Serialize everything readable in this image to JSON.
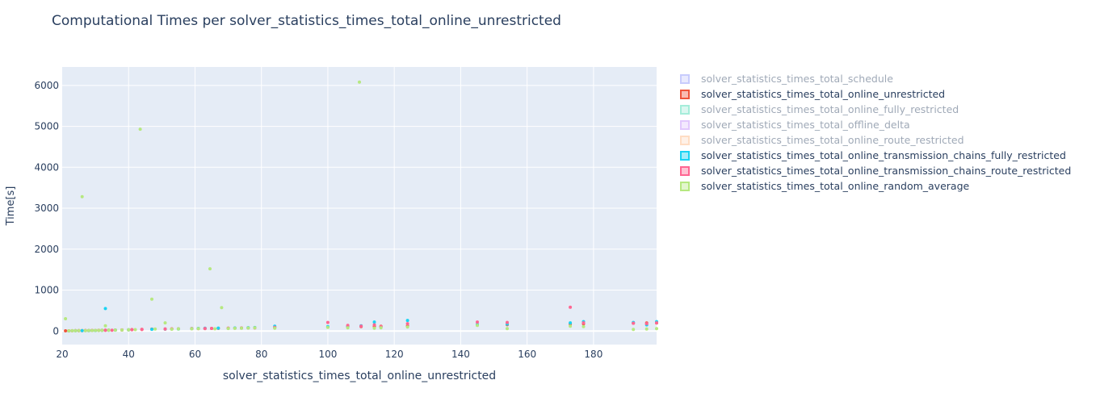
{
  "chart_data": {
    "type": "scatter",
    "title": "Computational Times per solver_statistics_times_total_online_unrestricted",
    "xlabel": "solver_statistics_times_total_online_unrestricted",
    "ylabel": "Time[s]",
    "xlim": [
      20,
      199
    ],
    "ylim": [
      -330,
      6450
    ],
    "xticks": [
      20,
      40,
      60,
      80,
      100,
      120,
      140,
      160,
      180
    ],
    "yticks": [
      0,
      1000,
      2000,
      3000,
      4000,
      5000,
      6000
    ],
    "grid": true,
    "legend_position": "right",
    "series": [
      {
        "name": "solver_statistics_times_total_schedule",
        "color": "#636efa",
        "visible": false,
        "points": []
      },
      {
        "name": "solver_statistics_times_total_online_unrestricted",
        "color": "#ef553b",
        "visible": true,
        "points": [
          [
            21,
            5
          ],
          [
            22,
            6
          ],
          [
            23,
            8
          ],
          [
            24,
            9
          ],
          [
            25,
            10
          ],
          [
            26,
            11
          ],
          [
            27,
            12
          ],
          [
            28,
            13
          ],
          [
            29,
            14
          ],
          [
            30,
            15
          ],
          [
            31,
            16
          ],
          [
            32,
            18
          ],
          [
            33,
            20
          ],
          [
            34,
            22
          ],
          [
            36,
            24
          ],
          [
            38,
            26
          ],
          [
            40,
            30
          ],
          [
            41,
            35
          ],
          [
            44,
            40
          ],
          [
            47,
            47
          ],
          [
            51,
            51
          ],
          [
            53,
            53
          ],
          [
            55,
            55
          ],
          [
            59,
            59
          ],
          [
            61,
            61
          ],
          [
            63,
            63
          ],
          [
            65,
            65
          ],
          [
            67,
            67
          ],
          [
            70,
            70
          ],
          [
            72,
            72
          ],
          [
            74,
            74
          ],
          [
            76,
            76
          ],
          [
            78,
            78
          ],
          [
            84,
            84
          ],
          [
            100,
            100
          ],
          [
            106,
            106
          ],
          [
            110,
            110
          ],
          [
            114,
            114
          ],
          [
            116,
            116
          ],
          [
            124,
            124
          ],
          [
            145,
            145
          ],
          [
            154,
            154
          ],
          [
            173,
            173
          ],
          [
            177,
            177
          ],
          [
            192,
            192
          ],
          [
            196,
            196
          ],
          [
            199,
            199
          ]
        ]
      },
      {
        "name": "solver_statistics_times_total_online_fully_restricted",
        "color": "#00cc96",
        "visible": false,
        "points": []
      },
      {
        "name": "solver_statistics_times_total_offline_delta",
        "color": "#ab63fa",
        "visible": false,
        "points": []
      },
      {
        "name": "solver_statistics_times_total_online_route_restricted",
        "color": "#ffa15a",
        "visible": false,
        "points": []
      },
      {
        "name": "solver_statistics_times_total_online_transmission_chains_fully_restricted",
        "color": "#19d3f3",
        "visible": true,
        "points": [
          [
            22,
            4
          ],
          [
            24,
            7
          ],
          [
            26,
            9
          ],
          [
            28,
            11
          ],
          [
            30,
            13
          ],
          [
            32,
            16
          ],
          [
            33,
            550
          ],
          [
            34,
            20
          ],
          [
            36,
            22
          ],
          [
            40,
            28
          ],
          [
            47,
            42
          ],
          [
            51,
            46
          ],
          [
            55,
            50
          ],
          [
            59,
            60
          ],
          [
            61,
            65
          ],
          [
            63,
            70
          ],
          [
            67,
            72
          ],
          [
            72,
            75
          ],
          [
            76,
            82
          ],
          [
            78,
            85
          ],
          [
            84,
            120
          ],
          [
            100,
            110
          ],
          [
            106,
            120
          ],
          [
            110,
            130
          ],
          [
            114,
            220
          ],
          [
            116,
            100
          ],
          [
            124,
            260
          ],
          [
            145,
            160
          ],
          [
            154,
            170
          ],
          [
            173,
            200
          ],
          [
            177,
            230
          ],
          [
            192,
            210
          ],
          [
            196,
            150
          ],
          [
            199,
            230
          ]
        ]
      },
      {
        "name": "solver_statistics_times_total_online_transmission_chains_route_restricted",
        "color": "#ff6692",
        "visible": true,
        "points": [
          [
            22,
            6
          ],
          [
            25,
            10
          ],
          [
            27,
            12
          ],
          [
            29,
            14
          ],
          [
            31,
            17
          ],
          [
            33,
            19
          ],
          [
            35,
            21
          ],
          [
            38,
            25
          ],
          [
            41,
            32
          ],
          [
            44,
            38
          ],
          [
            51,
            50
          ],
          [
            53,
            52
          ],
          [
            59,
            58
          ],
          [
            63,
            62
          ],
          [
            65,
            64
          ],
          [
            70,
            68
          ],
          [
            74,
            72
          ],
          [
            78,
            76
          ],
          [
            84,
            90
          ],
          [
            100,
            210
          ],
          [
            106,
            140
          ],
          [
            110,
            120
          ],
          [
            114,
            150
          ],
          [
            116,
            110
          ],
          [
            124,
            180
          ],
          [
            145,
            220
          ],
          [
            154,
            210
          ],
          [
            173,
            580
          ],
          [
            177,
            200
          ],
          [
            192,
            190
          ],
          [
            196,
            180
          ],
          [
            199,
            200
          ]
        ]
      },
      {
        "name": "solver_statistics_times_total_online_random_average",
        "color": "#b6e880",
        "visible": true,
        "points": [
          [
            21,
            300
          ],
          [
            22,
            5
          ],
          [
            23,
            7
          ],
          [
            24,
            8
          ],
          [
            25,
            9
          ],
          [
            26,
            3280
          ],
          [
            27,
            11
          ],
          [
            28,
            12
          ],
          [
            29,
            13
          ],
          [
            30,
            14
          ],
          [
            31,
            15
          ],
          [
            32,
            17
          ],
          [
            33,
            130
          ],
          [
            34,
            20
          ],
          [
            36,
            23
          ],
          [
            38,
            25
          ],
          [
            40,
            30
          ],
          [
            42,
            35
          ],
          [
            43.5,
            4930
          ],
          [
            47,
            780
          ],
          [
            48,
            50
          ],
          [
            51,
            200
          ],
          [
            53,
            45
          ],
          [
            55,
            52
          ],
          [
            59,
            55
          ],
          [
            61,
            58
          ],
          [
            64.5,
            1520
          ],
          [
            66,
            55
          ],
          [
            68,
            570
          ],
          [
            70,
            62
          ],
          [
            72,
            66
          ],
          [
            74,
            70
          ],
          [
            76,
            74
          ],
          [
            78,
            78
          ],
          [
            84,
            70
          ],
          [
            100,
            90
          ],
          [
            106,
            80
          ],
          [
            109.5,
            6080
          ],
          [
            114,
            70
          ],
          [
            116,
            80
          ],
          [
            124,
            100
          ],
          [
            145,
            140
          ],
          [
            154,
            60
          ],
          [
            173,
            120
          ],
          [
            177,
            110
          ],
          [
            192,
            40
          ],
          [
            196,
            50
          ],
          [
            199,
            60
          ]
        ]
      }
    ]
  }
}
